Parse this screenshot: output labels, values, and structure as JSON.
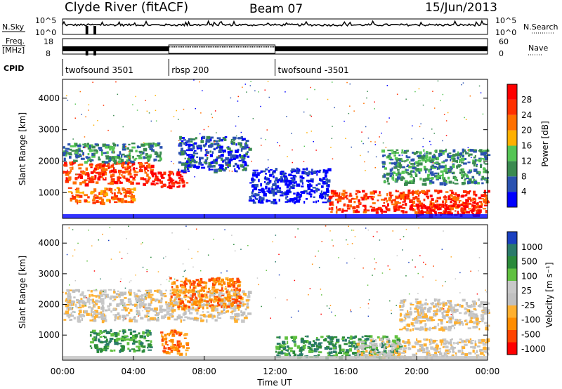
{
  "header": {
    "station": "Clyde River (fitACF)",
    "beam": "Beam 07",
    "date": "15/Jun/2013"
  },
  "strip": {
    "nsky_label": "N.Sky",
    "nsky_ticks": [
      "10^5",
      "10^0"
    ],
    "nsearch_label": "N.Search",
    "nsearch_ticks": [
      "10^5",
      "10^0"
    ],
    "freq_label_line1": "Freq.",
    "freq_label_line2": "[MHz]",
    "freq_ticks": [
      "18",
      "8"
    ],
    "nave_label": "Nave",
    "nave_ticks": [
      "60",
      "0"
    ],
    "cpid_label": "CPID",
    "cpid_segments": [
      {
        "label": "twofsound 3501",
        "start": 0.0,
        "end": 6.0
      },
      {
        "label": "rbsp 200",
        "start": 6.0,
        "end": 12.0
      },
      {
        "label": "twofsound -3501",
        "start": 12.0,
        "end": 24.0
      }
    ]
  },
  "colors": {
    "power": [
      "#0000ff",
      "#2a52b0",
      "#3a8a50",
      "#55c555",
      "#ffb000",
      "#ff7000",
      "#ff3000",
      "#ff0000"
    ],
    "velocity": [
      "#ff0000",
      "#ff4400",
      "#ff8c00",
      "#ffb030",
      "#c0c0c0",
      "#c8c8c8",
      "#60c040",
      "#2a8a3a",
      "#2a7a6a",
      "#1a40c0"
    ]
  },
  "chart_data": [
    {
      "type": "heatmap",
      "panel": "power",
      "ylabel": "Slant Range [km]",
      "ylim": [
        180,
        4600
      ],
      "yticks": [
        "1000",
        "2000",
        "3000",
        "4000"
      ],
      "xlabel": "Time UT",
      "xlim": [
        0,
        24
      ],
      "xticks": [
        "00:00",
        "04:00",
        "08:00",
        "12:00",
        "16:00",
        "20:00",
        "00:00"
      ],
      "colorbar_label": "Power [dB]",
      "colorbar_ticks": [
        "4",
        "8",
        "12",
        "16",
        "20",
        "24",
        "28"
      ],
      "regions": [
        {
          "t0": 0.0,
          "t1": 5.0,
          "r0": 1300,
          "r1": 2000,
          "level": 6
        },
        {
          "t0": 5.0,
          "t1": 7.0,
          "r0": 1200,
          "r1": 1700,
          "level": 7
        },
        {
          "t0": 0.3,
          "t1": 4.0,
          "r0": 700,
          "r1": 1200,
          "level": 5
        },
        {
          "t0": 0.0,
          "t1": 5.5,
          "r0": 2000,
          "r1": 2600,
          "level": 2
        },
        {
          "t0": 6.5,
          "t1": 10.5,
          "r0": 1700,
          "r1": 2800,
          "level": 1
        },
        {
          "t0": 10.5,
          "t1": 15.0,
          "r0": 700,
          "r1": 1800,
          "level": 0
        },
        {
          "t0": 15.0,
          "t1": 24.0,
          "r0": 400,
          "r1": 1100,
          "level": 6
        },
        {
          "t0": 20.0,
          "t1": 23.5,
          "r0": 300,
          "r1": 700,
          "level": 7
        },
        {
          "t0": 18.0,
          "t1": 24.0,
          "r0": 1300,
          "r1": 2400,
          "level": 2
        }
      ]
    },
    {
      "type": "heatmap",
      "panel": "velocity",
      "ylabel": "Slant Range [km]",
      "ylim": [
        180,
        4600
      ],
      "yticks": [
        "1000",
        "2000",
        "3000",
        "4000"
      ],
      "xlabel": "Time UT",
      "xlim": [
        0,
        24
      ],
      "xticks": [
        "00:00",
        "04:00",
        "08:00",
        "12:00",
        "16:00",
        "20:00",
        "00:00"
      ],
      "colorbar_label": "Velocity [m s⁻¹]",
      "colorbar_ticks": [
        "1000",
        "500",
        "100",
        "25",
        "-25",
        "-100",
        "-500",
        "-1000"
      ],
      "regions": [
        {
          "t0": 0.0,
          "t1": 10.5,
          "r0": 1500,
          "r1": 2500,
          "level": 4
        },
        {
          "t0": 6.0,
          "t1": 10.0,
          "r0": 1900,
          "r1": 2900,
          "level": 2
        },
        {
          "t0": 1.5,
          "t1": 5.0,
          "r0": 500,
          "r1": 1200,
          "level": 7
        },
        {
          "t0": 5.5,
          "t1": 7.0,
          "r0": 400,
          "r1": 1200,
          "level": 2
        },
        {
          "t0": 12.0,
          "t1": 19.0,
          "r0": 300,
          "r1": 1000,
          "level": 7
        },
        {
          "t0": 16.5,
          "t1": 24.0,
          "r0": 300,
          "r1": 900,
          "level": 4
        },
        {
          "t0": 19.0,
          "t1": 24.0,
          "r0": 1200,
          "r1": 2200,
          "level": 4
        }
      ]
    }
  ]
}
